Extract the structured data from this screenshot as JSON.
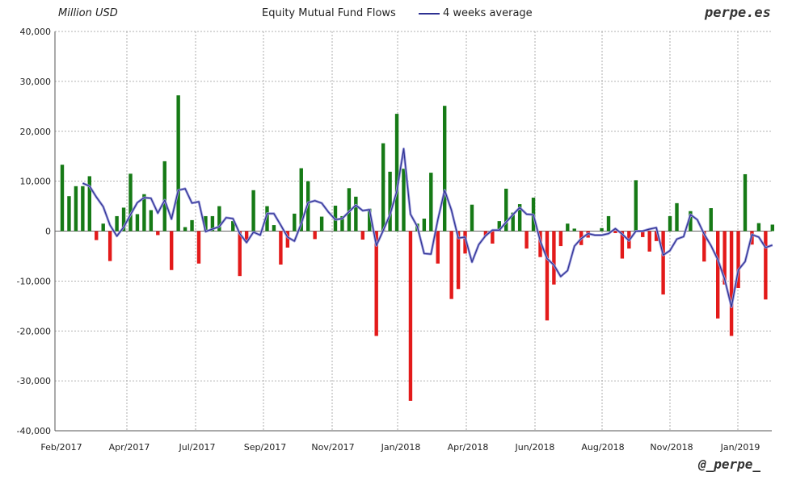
{
  "header": {
    "unit_label": "Million USD",
    "title": "Equity Mutual Fund Flows",
    "legend_label": "4 weeks average",
    "brand": "perpe.es",
    "handle": "@_perpe_"
  },
  "colors": {
    "positive": "#167a16",
    "negative": "#e31a1a",
    "average": "#2e3192",
    "grid": "#999999"
  },
  "chart_data": {
    "type": "bar",
    "title": "Equity Mutual Fund Flows",
    "ylabel": "Million USD",
    "xlabel": "",
    "ylim": [
      -40000,
      40000
    ],
    "y_ticks": [
      40000,
      30000,
      20000,
      10000,
      0,
      -10000,
      -20000,
      -30000,
      -40000
    ],
    "y_tick_labels": [
      "40,000",
      "30,000",
      "20,000",
      "10,000",
      "0",
      "-10,000",
      "-20,000",
      "-30,000",
      "-40,000"
    ],
    "x_tick_labels": [
      "Feb/2017",
      "Apr/2017",
      "Jul/2017",
      "Sep/2017",
      "Nov/2017",
      "Jan/2018",
      "Apr/2018",
      "Jun/2018",
      "Aug/2018",
      "Nov/2018",
      "Jan/2019"
    ],
    "grid": true,
    "legend_position": "top",
    "series": [
      {
        "type": "bar",
        "weekly_flows": [
          13300,
          7000,
          9000,
          9000,
          11000,
          -1800,
          1500,
          -6000,
          3000,
          4700,
          11500,
          3400,
          7400,
          4200,
          -800,
          14000,
          -7800,
          27200,
          800,
          2200,
          -6500,
          3000,
          3000,
          5000,
          0,
          2000,
          -9000,
          -2000,
          8200,
          0,
          5000,
          1200,
          -6700,
          -3300,
          3500,
          12600,
          10000,
          -1600,
          2900,
          0,
          5100,
          3000,
          8600,
          6900,
          -1700,
          4500,
          -21000,
          17600,
          11900,
          23500,
          12500,
          -34000,
          1500,
          2500,
          11700,
          -6500,
          25100,
          -13600,
          -11600,
          -4500,
          5300,
          0,
          -1000,
          -2500,
          2000,
          8500,
          3700,
          5400,
          -3500,
          6700,
          -5200,
          -17900,
          -10700,
          -3000,
          1500,
          500,
          -2800,
          -1300,
          0,
          600,
          3000,
          -400,
          -5500,
          -3500,
          10200,
          -1200,
          -4100,
          -2000,
          -12700,
          3000,
          5600,
          0,
          4000,
          0,
          -6100,
          4600,
          -17500,
          -10700,
          -21000,
          -11400,
          11400,
          -2700,
          1600,
          -13700,
          1300,
          0
        ]
      },
      {
        "type": "line",
        "name": "4 weeks average",
        "values": [
          null,
          null,
          null,
          9600,
          9000,
          6800,
          4900,
          1200,
          -1000,
          800,
          3300,
          5700,
          6700,
          6600,
          3600,
          6200,
          2400,
          8200,
          8500,
          5600,
          5900,
          -100,
          400,
          900,
          2700,
          2500,
          -500,
          -2300,
          -200,
          -800,
          3500,
          3500,
          1200,
          -1200,
          -2000,
          1500,
          5700,
          6100,
          5600,
          3800,
          2300,
          2500,
          3900,
          5200,
          4100,
          4300,
          -2900,
          100,
          3300,
          8000,
          16500,
          3400,
          900,
          -4500,
          -4600,
          2300,
          8200,
          4200,
          -1400,
          -1200,
          -6200,
          -2700,
          -900,
          200,
          200,
          1800,
          3300,
          4700,
          3400,
          3300,
          -2000,
          -5500,
          -6800,
          -9100,
          -7900,
          -3000,
          -1500,
          -500,
          -800,
          -800,
          -500,
          500,
          -600,
          -1900,
          0,
          0,
          400,
          700,
          -4800,
          -3900,
          -1600,
          -1100,
          3300,
          2300,
          -600,
          -2900,
          -5700,
          -9600,
          -15200,
          -7800,
          -6100,
          -700,
          -1200,
          -3300,
          -2800,
          null
        ]
      }
    ]
  }
}
